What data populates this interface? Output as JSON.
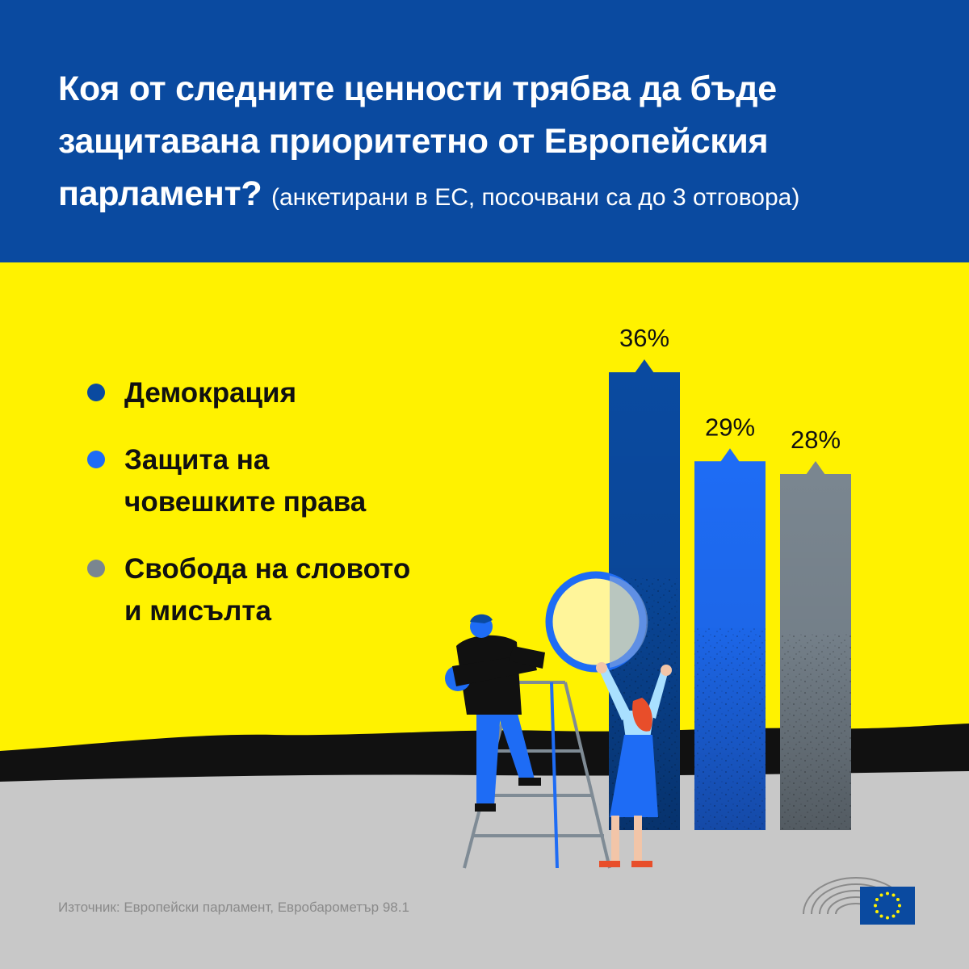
{
  "title": {
    "main": "Коя от следните ценности трябва да бъде защитавана приоритетно от Европейския парламент?",
    "sub": "(анкетирани в ЕС, посочвани са до 3 отговора)"
  },
  "chart_data": {
    "type": "bar",
    "categories": [
      "Демокрация",
      "Защита на човешките права",
      "Свобода на словото и мисълта"
    ],
    "values": [
      36,
      29,
      28
    ],
    "value_labels": [
      "36%",
      "29%",
      "28%"
    ],
    "colors": [
      "#0a4aa0",
      "#1e6cf5",
      "#7a8690"
    ],
    "legend_placement": "left",
    "grid": false
  },
  "legend": [
    {
      "label": "Демокрация",
      "color": "#0a4aa0"
    },
    {
      "label": "Защита на\nчовешките права",
      "color": "#1e6cf5"
    },
    {
      "label": "Свобода на словото\nи мисълта",
      "color": "#7a8690"
    }
  ],
  "source": "Източник: Европейски парламент, Евробарометър 98.1",
  "colors": {
    "header": "#0a4aa0",
    "background": "#fff200",
    "ground": "#c8c8c8",
    "horizon": "#111111"
  },
  "icons": [
    "european-parliament-hemicycle-icon",
    "eu-flag-icon"
  ]
}
